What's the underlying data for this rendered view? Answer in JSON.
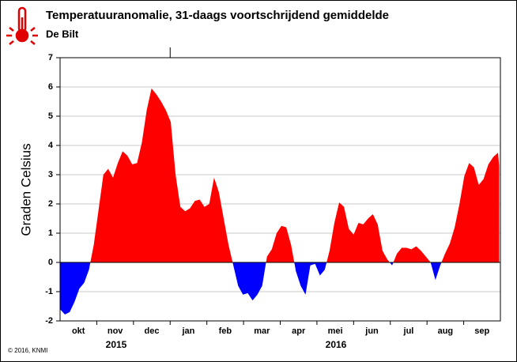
{
  "chart_data": {
    "type": "area",
    "title": "Temperatuuranomalie, 31-daags voortschrijdend gemiddelde",
    "subtitle": "De Bilt",
    "y_label": "Graden Celsius",
    "footer": "© 2016, KNMI",
    "categories": [
      "okt",
      "nov",
      "dec",
      "jan",
      "feb",
      "mar",
      "apr",
      "mei",
      "jun",
      "jul",
      "aug",
      "sep"
    ],
    "year_labels": [
      "2015",
      "2016"
    ],
    "xlim": [
      0,
      366
    ],
    "ylim": [
      -2,
      7
    ],
    "yticks": [
      -2,
      -1,
      0,
      1,
      2,
      3,
      4,
      5,
      6,
      7
    ],
    "grid": true,
    "positive_color": "#ff0000",
    "negative_color": "#0000ff",
    "x": [
      0,
      4,
      8,
      12,
      16,
      20,
      24,
      28,
      32,
      36,
      40,
      44,
      48,
      52,
      56,
      60,
      64,
      68,
      72,
      76,
      80,
      84,
      88,
      92,
      96,
      100,
      104,
      108,
      112,
      116,
      120,
      124,
      128,
      132,
      136,
      140,
      144,
      148,
      152,
      156,
      160,
      164,
      168,
      172,
      176,
      180,
      184,
      188,
      192,
      196,
      200,
      204,
      208,
      212,
      216,
      220,
      224,
      228,
      232,
      236,
      240,
      244,
      248,
      252,
      256,
      260,
      264,
      268,
      272,
      276,
      280,
      284,
      288,
      292,
      296,
      300,
      304,
      308,
      312,
      316,
      320,
      324,
      328,
      332,
      336,
      340,
      344,
      348,
      352,
      356,
      360,
      364,
      365
    ],
    "values": [
      -1.6,
      -1.78,
      -1.7,
      -1.35,
      -0.9,
      -0.7,
      -0.25,
      0.6,
      1.8,
      3.0,
      3.2,
      2.9,
      3.4,
      3.8,
      3.65,
      3.35,
      3.4,
      4.1,
      5.2,
      5.95,
      5.75,
      5.5,
      5.2,
      4.8,
      3.0,
      1.9,
      1.75,
      1.85,
      2.1,
      2.15,
      1.9,
      2.0,
      2.9,
      2.4,
      1.5,
      0.6,
      -0.1,
      -0.8,
      -1.1,
      -1.05,
      -1.3,
      -1.1,
      -0.8,
      0.2,
      0.45,
      1.0,
      1.25,
      1.2,
      0.6,
      -0.3,
      -0.8,
      -1.1,
      -0.1,
      -0.05,
      -0.45,
      -0.25,
      0.4,
      1.35,
      2.05,
      1.9,
      1.15,
      0.95,
      1.35,
      1.3,
      1.5,
      1.65,
      1.3,
      0.4,
      0.1,
      -0.1,
      0.3,
      0.5,
      0.5,
      0.45,
      0.55,
      0.4,
      0.2,
      0.0,
      -0.6,
      -0.1,
      0.3,
      0.65,
      1.2,
      2.0,
      2.95,
      3.4,
      3.25,
      2.65,
      2.85,
      3.35,
      3.6,
      3.75,
      3.3
    ]
  }
}
